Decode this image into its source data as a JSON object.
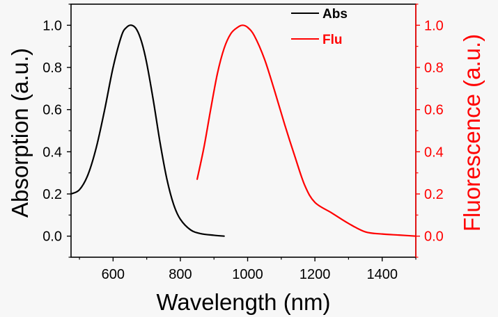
{
  "colors": {
    "abs": "#000000",
    "flu": "#ff0000",
    "background": "#f7f7f7"
  },
  "chart_data": {
    "type": "line",
    "xlabel": "Wavelength (nm)",
    "ylabel_left": "Absorption (a.u.)",
    "ylabel_right": "Fluorescence (a.u.)",
    "xlim": [
      475,
      1500
    ],
    "ylim_left": [
      -0.1,
      1.1
    ],
    "ylim_right": [
      -0.1,
      1.1
    ],
    "x_ticks": [
      600,
      800,
      1000,
      1200,
      1400
    ],
    "x_tick_labels": [
      "600",
      "800",
      "1000",
      "1200",
      "1400"
    ],
    "y_ticks_left": [
      0.0,
      0.2,
      0.4,
      0.6,
      0.8,
      1.0
    ],
    "y_tick_labels_left": [
      "0.0",
      "0.2",
      "0.4",
      "0.6",
      "0.8",
      "1.0"
    ],
    "y_ticks_right": [
      0.0,
      0.2,
      0.4,
      0.6,
      0.8,
      1.0
    ],
    "y_tick_labels_right": [
      "0.0",
      "0.2",
      "0.4",
      "0.6",
      "0.8",
      "1.0"
    ],
    "legend": {
      "position": "top-right",
      "entries": [
        "Abs",
        "Flu"
      ]
    },
    "series": [
      {
        "name": "Abs",
        "axis": "left",
        "color": "#000000",
        "x": [
          475,
          500,
          525,
          550,
          575,
          600,
          625,
          640,
          655,
          670,
          685,
          700,
          720,
          740,
          760,
          780,
          800,
          830,
          860,
          900,
          930
        ],
        "y": [
          0.2,
          0.22,
          0.29,
          0.42,
          0.6,
          0.8,
          0.95,
          0.99,
          1.0,
          0.98,
          0.92,
          0.82,
          0.64,
          0.44,
          0.27,
          0.15,
          0.08,
          0.03,
          0.012,
          0.004,
          0.0
        ]
      },
      {
        "name": "Flu",
        "axis": "right",
        "color": "#ff0000",
        "x": [
          850,
          870,
          890,
          910,
          930,
          950,
          970,
          985,
          1000,
          1020,
          1050,
          1080,
          1110,
          1140,
          1170,
          1200,
          1250,
          1300,
          1350,
          1400,
          1450,
          1500
        ],
        "y": [
          0.27,
          0.42,
          0.6,
          0.77,
          0.89,
          0.96,
          0.99,
          1.0,
          0.99,
          0.95,
          0.84,
          0.69,
          0.53,
          0.38,
          0.24,
          0.16,
          0.11,
          0.06,
          0.02,
          0.01,
          0.005,
          0.0
        ]
      }
    ]
  }
}
